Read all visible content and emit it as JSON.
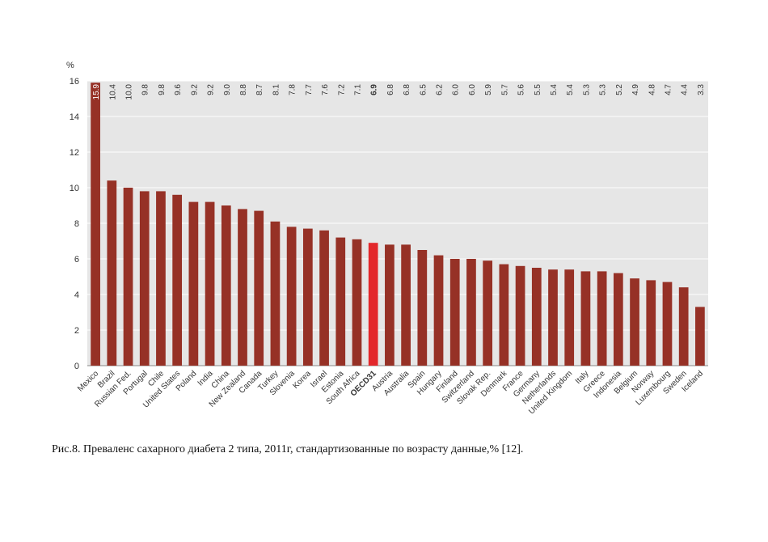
{
  "caption": "Рис.8.  Преваленс сахарного диабета 2 типа, 2011г, стандартизованные по возрасту данные,% [12].",
  "chart_data": {
    "type": "bar",
    "title": "",
    "xlabel": "",
    "ylabel": "%",
    "ylim": [
      0,
      16
    ],
    "yticks": [
      0,
      2,
      4,
      6,
      8,
      10,
      12,
      14,
      16
    ],
    "grid": true,
    "legend": "none",
    "categories": [
      "Mexico",
      "Brazil",
      "Russian Fed.",
      "Portugal",
      "Chile",
      "United States",
      "Poland",
      "India",
      "China",
      "New Zealand",
      "Canada",
      "Turkey",
      "Slovenia",
      "Korea",
      "Israel",
      "Estonia",
      "South Africa",
      "OECD31",
      "Austria",
      "Australia",
      "Spain",
      "Hungary",
      "Finland",
      "Switzerland",
      "Slovak Rep.",
      "Denmark",
      "France",
      "Germany",
      "Netherlands",
      "United Kingdom",
      "Italy",
      "Greece",
      "Indonesia",
      "Belgium",
      "Norway",
      "Luxembourg",
      "Sweden",
      "Iceland"
    ],
    "values": [
      15.9,
      10.4,
      10.0,
      9.8,
      9.8,
      9.6,
      9.2,
      9.2,
      9.0,
      8.8,
      8.7,
      8.1,
      7.8,
      7.7,
      7.6,
      7.2,
      7.1,
      6.9,
      6.8,
      6.8,
      6.5,
      6.2,
      6.0,
      6.0,
      5.9,
      5.7,
      5.6,
      5.5,
      5.4,
      5.4,
      5.3,
      5.3,
      5.2,
      4.9,
      4.8,
      4.7,
      4.4,
      3.3
    ],
    "value_labels": [
      "15.9",
      "10.4",
      "10.0",
      "9.8",
      "9.8",
      "9.6",
      "9.2",
      "9.2",
      "9.0",
      "8.8",
      "8.7",
      "8.1",
      "7.8",
      "7.7",
      "7.6",
      "7.2",
      "7.1",
      "6.9",
      "6.8",
      "6.8",
      "6.5",
      "6.2",
      "6.0",
      "6.0",
      "5.9",
      "5.7",
      "5.6",
      "5.5",
      "5.4",
      "5.4",
      "5.3",
      "5.3",
      "5.2",
      "4.9",
      "4.8",
      "4.7",
      "4.4",
      "3.3"
    ],
    "highlight_category": "OECD31",
    "colors": {
      "bar": "#963126",
      "highlight": "#e3272b",
      "plot_bg": "#e6e6e6",
      "grid": "#ffffff",
      "text": "#333333"
    }
  }
}
